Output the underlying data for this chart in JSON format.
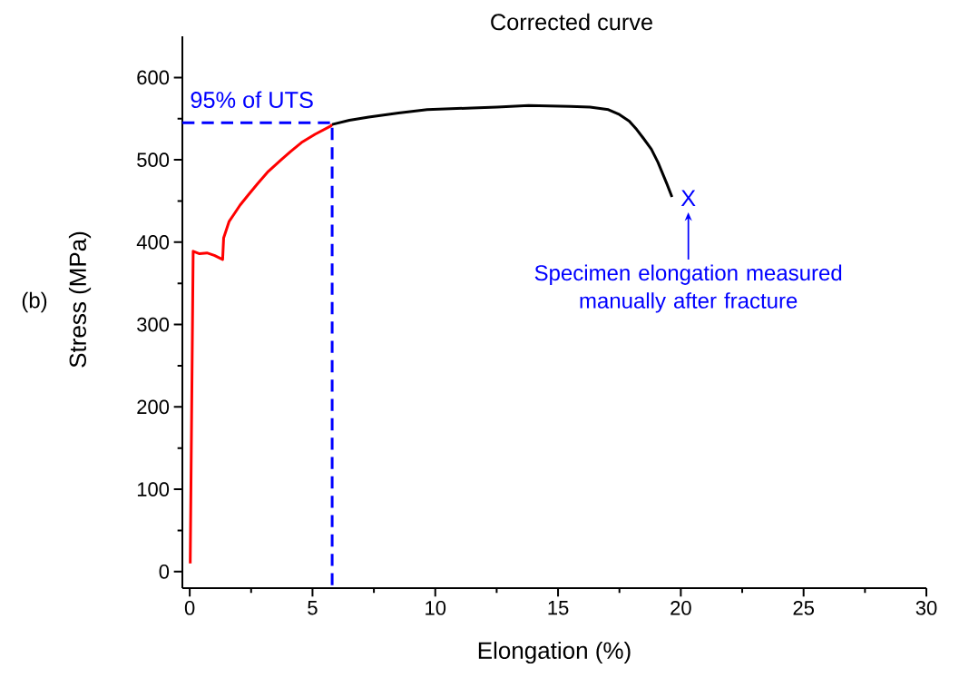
{
  "chart_data": {
    "type": "line",
    "title": "Corrected curve",
    "xlabel": "Elongation (%)",
    "ylabel": "Stress (MPa)",
    "xlim": [
      -0.3,
      30
    ],
    "ylim": [
      -20,
      650
    ],
    "xticks": [
      0,
      5,
      10,
      15,
      20,
      25,
      30
    ],
    "yticks": [
      0,
      100,
      200,
      300,
      400,
      500,
      600
    ],
    "series": [
      {
        "color": "#ff0000",
        "x": [
          0.02,
          0.08,
          0.14,
          0.4,
          0.7,
          1.0,
          1.34,
          1.38,
          1.6,
          2.05,
          2.4,
          2.76,
          3.2,
          3.72,
          4.1,
          4.55,
          5.1,
          5.74,
          5.8
        ],
        "values": [
          10,
          200,
          389,
          386,
          387,
          384,
          379,
          405,
          425,
          445,
          458,
          471,
          486,
          500,
          510,
          521,
          531,
          541,
          543
        ]
      },
      {
        "color": "#000000",
        "x": [
          5.8,
          6.5,
          7.29,
          8.5,
          9.67,
          11.5,
          12.52,
          13.8,
          15.5,
          16.3,
          17.05,
          17.5,
          17.9,
          18.2,
          18.48,
          18.8,
          19.07,
          19.43,
          19.64
        ],
        "values": [
          543,
          548,
          552,
          557,
          561,
          563,
          564,
          566,
          565,
          564,
          561,
          555,
          547,
          537,
          526,
          513,
          497,
          471,
          455
        ]
      },
      {
        "color": "#0000ff",
        "line_style": "dashed",
        "x": [
          -0.3,
          5.8,
          5.8
        ],
        "values": [
          545,
          545,
          -20
        ]
      }
    ],
    "annotations": [
      "(b)",
      {
        "text": "95% of UTS",
        "x": 0,
        "y": 545
      },
      "X",
      "Specimen elongation measured manually after fracture"
    ]
  }
}
